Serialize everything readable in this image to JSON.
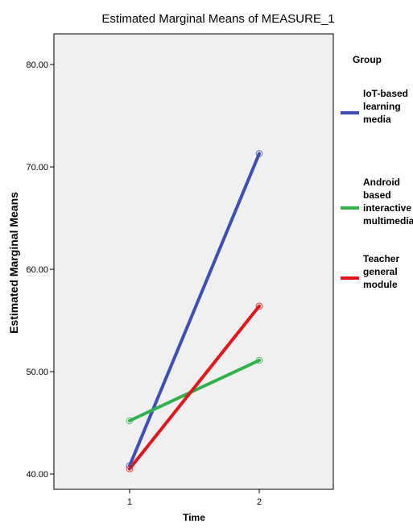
{
  "chart_data": {
    "type": "line",
    "title": "Estimated Marginal Means of MEASURE_1",
    "xlabel": "Time",
    "ylabel": "Estimated Marginal Means",
    "categories": [
      "1",
      "2"
    ],
    "ylim": [
      38.5,
      83
    ],
    "yticks": [
      "40.00",
      "50.00",
      "60.00",
      "70.00",
      "80.00"
    ],
    "yticks_values": [
      40,
      50,
      60,
      70,
      80
    ],
    "legend_title": "Group",
    "legend_position": "right",
    "grid": false,
    "series": [
      {
        "name_lines": [
          "IoT-based",
          "learning",
          "media"
        ],
        "color": "#3f4fb5",
        "values": [
          40.8,
          71.3
        ]
      },
      {
        "name_lines": [
          "Android",
          "based",
          "interactive",
          "multimedia"
        ],
        "color": "#33b14f",
        "values": [
          45.2,
          51.1
        ]
      },
      {
        "name_lines": [
          "Teacher",
          "general",
          "module"
        ],
        "color": "#e3161b",
        "values": [
          40.5,
          56.4
        ]
      }
    ]
  }
}
